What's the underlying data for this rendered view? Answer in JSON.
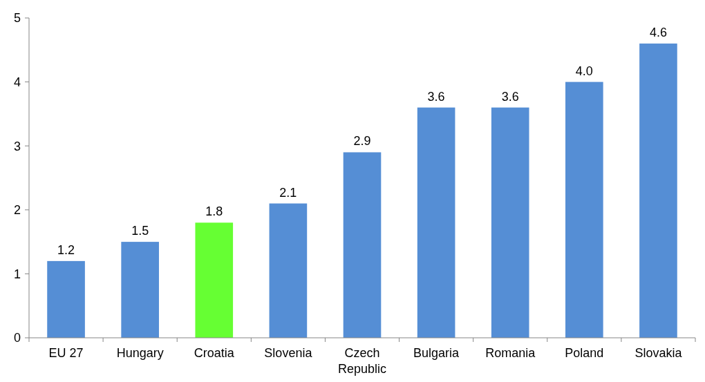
{
  "chart_data": {
    "type": "bar",
    "categories": [
      "EU 27",
      "Hungary",
      "Croatia",
      "Slovenia",
      "Czech Republic",
      "Bulgaria",
      "Romania",
      "Poland",
      "Slovakia"
    ],
    "values": [
      1.2,
      1.5,
      1.8,
      2.1,
      2.9,
      3.6,
      3.6,
      4.0,
      4.6
    ],
    "colors": [
      "#558ed5",
      "#558ed5",
      "#66ff33",
      "#558ed5",
      "#558ed5",
      "#558ed5",
      "#558ed5",
      "#558ed5",
      "#558ed5"
    ],
    "value_labels": [
      "1.2",
      "1.5",
      "1.8",
      "2.1",
      "2.9",
      "3.6",
      "3.6",
      "4.0",
      "4.6"
    ],
    "ylim": [
      0,
      5
    ],
    "yticks": [
      0,
      1,
      2,
      3,
      4,
      5
    ],
    "grid": false
  }
}
